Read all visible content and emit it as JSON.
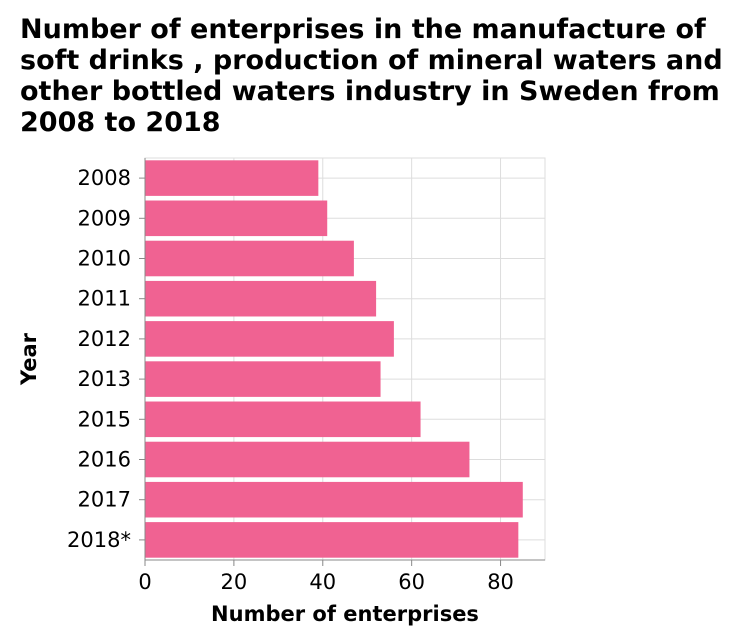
{
  "chart_data": {
    "type": "bar",
    "orientation": "horizontal",
    "title": "Number of enterprises in the manufacture of soft drinks , production of mineral waters and other bottled waters industry in Sweden from 2008 to 2018",
    "xlabel": "Number of enterprises",
    "ylabel": "Year",
    "categories": [
      "2008",
      "2009",
      "2010",
      "2011",
      "2012",
      "2013",
      "2015",
      "2016",
      "2017",
      "2018*"
    ],
    "values": [
      39,
      41,
      47,
      52,
      56,
      53,
      62,
      73,
      85,
      84
    ],
    "xlim": [
      0,
      90
    ],
    "xticks": [
      0,
      20,
      40,
      60,
      80
    ],
    "grid": true,
    "bar_color": "#f06292"
  }
}
